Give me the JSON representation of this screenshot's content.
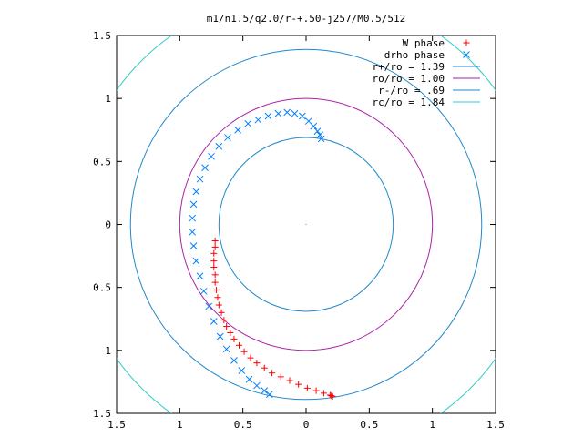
{
  "chart_data": {
    "type": "scatter",
    "title": "m1/n1.5/q2.0/r-+.50-j257/M0.5/512",
    "xlabel": "",
    "ylabel": "",
    "xlim": [
      -1.5,
      1.5
    ],
    "ylim": [
      -1.5,
      1.5
    ],
    "x_ticks": [
      -1.5,
      -1,
      -0.5,
      0,
      0.5,
      1,
      1.5
    ],
    "y_ticks": [
      -1.5,
      -1,
      -0.5,
      0,
      0.5,
      1,
      1.5
    ],
    "x_tick_labels": [
      "1.5",
      "1",
      "0.5",
      "0",
      "0.5",
      "1",
      "1.5"
    ],
    "y_tick_labels": [
      "1.5",
      "1",
      "0.5",
      "0",
      "0.5",
      "1",
      "1.5"
    ],
    "grid": false,
    "legend_position": "top-right",
    "series": [
      {
        "name": "W phase",
        "kind": "points",
        "marker": "plus",
        "color": "#ff0000",
        "points": [
          [
            -0.72,
            -0.13
          ],
          [
            -0.72,
            -0.18
          ],
          [
            -0.73,
            -0.23
          ],
          [
            -0.73,
            -0.29
          ],
          [
            -0.73,
            -0.34
          ],
          [
            -0.72,
            -0.4
          ],
          [
            -0.72,
            -0.46
          ],
          [
            -0.71,
            -0.52
          ],
          [
            -0.7,
            -0.58
          ],
          [
            -0.69,
            -0.64
          ],
          [
            -0.67,
            -0.7
          ],
          [
            -0.65,
            -0.76
          ],
          [
            -0.63,
            -0.81
          ],
          [
            -0.6,
            -0.86
          ],
          [
            -0.57,
            -0.91
          ],
          [
            -0.53,
            -0.96
          ],
          [
            -0.49,
            -1.01
          ],
          [
            -0.44,
            -1.06
          ],
          [
            -0.39,
            -1.1
          ],
          [
            -0.33,
            -1.14
          ],
          [
            -0.27,
            -1.18
          ],
          [
            -0.2,
            -1.21
          ],
          [
            -0.13,
            -1.24
          ],
          [
            -0.06,
            -1.27
          ],
          [
            0.01,
            -1.3
          ],
          [
            0.08,
            -1.32
          ],
          [
            0.14,
            -1.34
          ],
          [
            0.2,
            -1.36
          ],
          [
            0.21,
            -1.365
          ],
          [
            0.19,
            -1.355
          ]
        ]
      },
      {
        "name": "drho phase",
        "kind": "points",
        "marker": "cross",
        "color": "#0080ff",
        "points": [
          [
            0.12,
            0.68
          ],
          [
            0.11,
            0.71
          ],
          [
            0.09,
            0.74
          ],
          [
            0.06,
            0.78
          ],
          [
            0.02,
            0.82
          ],
          [
            -0.03,
            0.86
          ],
          [
            -0.09,
            0.88
          ],
          [
            -0.15,
            0.89
          ],
          [
            -0.22,
            0.88
          ],
          [
            -0.3,
            0.86
          ],
          [
            -0.38,
            0.83
          ],
          [
            -0.46,
            0.8
          ],
          [
            -0.54,
            0.75
          ],
          [
            -0.62,
            0.69
          ],
          [
            -0.69,
            0.62
          ],
          [
            -0.75,
            0.54
          ],
          [
            -0.8,
            0.45
          ],
          [
            -0.84,
            0.36
          ],
          [
            -0.87,
            0.26
          ],
          [
            -0.89,
            0.16
          ],
          [
            -0.9,
            0.05
          ],
          [
            -0.9,
            -0.06
          ],
          [
            -0.89,
            -0.17
          ],
          [
            -0.87,
            -0.29
          ],
          [
            -0.84,
            -0.41
          ],
          [
            -0.81,
            -0.53
          ],
          [
            -0.77,
            -0.65
          ],
          [
            -0.73,
            -0.77
          ],
          [
            -0.68,
            -0.89
          ],
          [
            -0.63,
            -0.99
          ],
          [
            -0.57,
            -1.08
          ],
          [
            -0.51,
            -1.16
          ],
          [
            -0.45,
            -1.23
          ],
          [
            -0.39,
            -1.28
          ],
          [
            -0.33,
            -1.32
          ],
          [
            -0.29,
            -1.35
          ]
        ]
      },
      {
        "name": "r+/ro = 1.39",
        "kind": "circle",
        "radius": 1.39,
        "color": "#2288cc"
      },
      {
        "name": "ro/ro = 1.00",
        "kind": "circle",
        "radius": 1.0,
        "color": "#aa22aa"
      },
      {
        "name": "r-/ro = .69",
        "kind": "circle",
        "radius": 0.69,
        "color": "#2288cc"
      },
      {
        "name": "rc/ro = 1.84",
        "kind": "circle",
        "radius": 1.84,
        "color": "#33cccc"
      }
    ]
  }
}
